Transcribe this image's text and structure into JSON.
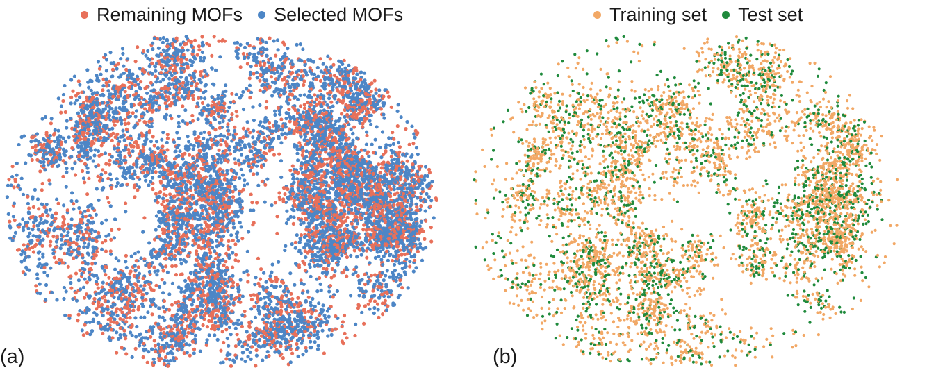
{
  "chart_data": [
    {
      "type": "scatter",
      "panel_label": "(a)",
      "title": "",
      "xlabel": "",
      "ylabel": "",
      "axes_visible": false,
      "grid": false,
      "legend_position": "top-center",
      "series": [
        {
          "name": "Remaining MOFs",
          "color": "#e8705a"
        },
        {
          "name": "Selected MOFs",
          "color": "#4d86c6"
        }
      ],
      "note_points": "dense t-SNE style point clouds; individual coordinates not legible"
    },
    {
      "type": "scatter",
      "panel_label": "(b)",
      "title": "",
      "xlabel": "",
      "ylabel": "",
      "axes_visible": false,
      "grid": false,
      "legend_position": "top-center",
      "series": [
        {
          "name": "Training set",
          "color": "#f2a866"
        },
        {
          "name": "Test set",
          "color": "#1f8a3c"
        }
      ]
    }
  ]
}
